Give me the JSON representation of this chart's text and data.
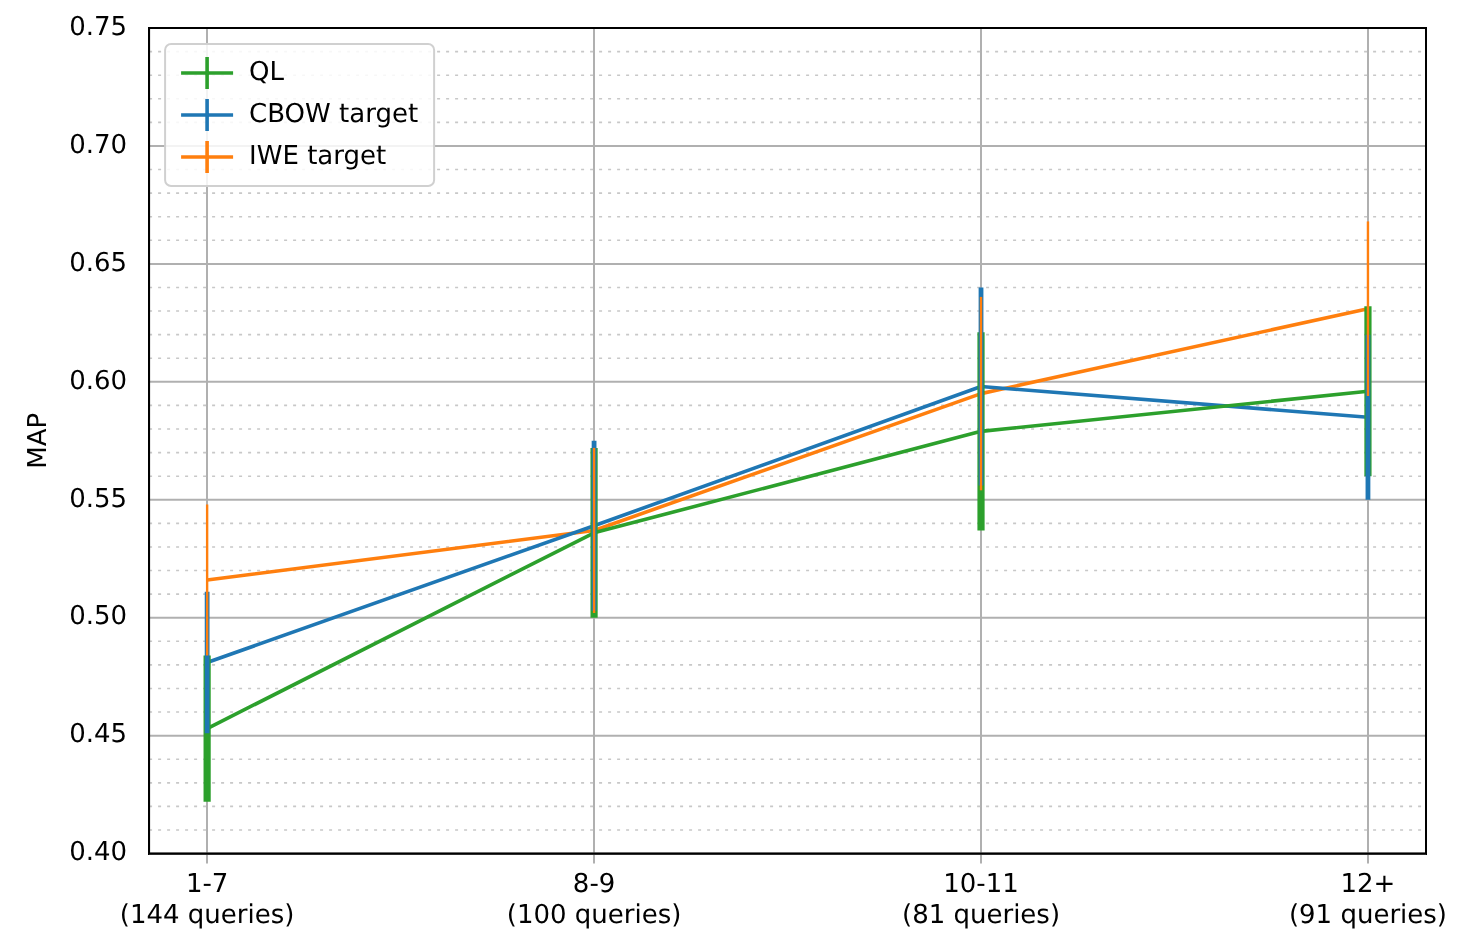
{
  "chart_data": {
    "type": "line",
    "ylabel": "MAP",
    "categories": [
      "1-7\n(144 queries)",
      "8-9\n(100 queries)",
      "10-11\n(81 queries)",
      "12+\n(91 queries)"
    ],
    "series": [
      {
        "name": "QL",
        "color": "#2ca02c",
        "values": [
          0.453,
          0.536,
          0.579,
          0.596
        ],
        "errors": [
          0.031,
          0.036,
          0.042,
          0.036
        ]
      },
      {
        "name": "CBOW target",
        "color": "#1f77b4",
        "values": [
          0.481,
          0.539,
          0.598,
          0.585
        ],
        "errors": [
          0.03,
          0.036,
          0.042,
          0.035
        ]
      },
      {
        "name": "IWE target",
        "color": "#ff7f0e",
        "values": [
          0.516,
          0.537,
          0.595,
          0.631
        ],
        "errors": [
          0.032,
          0.035,
          0.041,
          0.037
        ]
      }
    ],
    "ylim": [
      0.4,
      0.75
    ],
    "yticks": [
      {
        "value": 0.4,
        "label": "0.40"
      },
      {
        "value": 0.41,
        "label": null
      },
      {
        "value": 0.42,
        "label": null
      },
      {
        "value": 0.43,
        "label": null
      },
      {
        "value": 0.44,
        "label": null
      },
      {
        "value": 0.45,
        "label": "0.45"
      },
      {
        "value": 0.46,
        "label": null
      },
      {
        "value": 0.47,
        "label": null
      },
      {
        "value": 0.48,
        "label": null
      },
      {
        "value": 0.49,
        "label": null
      },
      {
        "value": 0.5,
        "label": "0.50"
      },
      {
        "value": 0.51,
        "label": null
      },
      {
        "value": 0.52,
        "label": null
      },
      {
        "value": 0.53,
        "label": null
      },
      {
        "value": 0.54,
        "label": null
      },
      {
        "value": 0.55,
        "label": "0.55"
      },
      {
        "value": 0.56,
        "label": null
      },
      {
        "value": 0.57,
        "label": null
      },
      {
        "value": 0.58,
        "label": null
      },
      {
        "value": 0.59,
        "label": null
      },
      {
        "value": 0.6,
        "label": "0.60"
      },
      {
        "value": 0.61,
        "label": null
      },
      {
        "value": 0.62,
        "label": null
      },
      {
        "value": 0.63,
        "label": null
      },
      {
        "value": 0.64,
        "label": null
      },
      {
        "value": 0.65,
        "label": "0.65"
      },
      {
        "value": 0.66,
        "label": null
      },
      {
        "value": 0.67,
        "label": null
      },
      {
        "value": 0.68,
        "label": null
      },
      {
        "value": 0.69,
        "label": null
      },
      {
        "value": 0.7,
        "label": "0.70"
      },
      {
        "value": 0.71,
        "label": null
      },
      {
        "value": 0.72,
        "label": null
      },
      {
        "value": 0.73,
        "label": null
      },
      {
        "value": 0.74,
        "label": null
      },
      {
        "value": 0.75,
        "label": "0.75"
      }
    ],
    "grid": true,
    "legend": "top left",
    "marker": "none",
    "line_style": "solid"
  }
}
